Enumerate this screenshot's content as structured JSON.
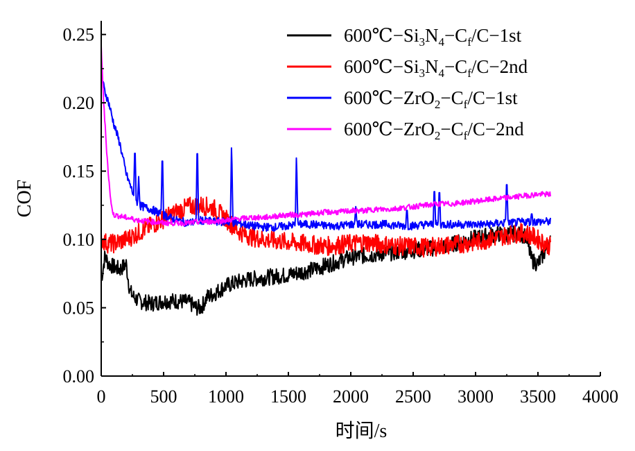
{
  "chart_data": {
    "type": "line",
    "title": "",
    "xlabel": "时间/s",
    "ylabel": "COF",
    "xlim": [
      0,
      4000
    ],
    "ylim": [
      0,
      0.26
    ],
    "x_ticks": [
      0,
      500,
      1000,
      1500,
      2000,
      2500,
      3000,
      3500,
      4000
    ],
    "x_tick_labels": [
      "0",
      "500",
      "1000",
      "1500",
      "2000",
      "2500",
      "3000",
      "3500",
      "4000"
    ],
    "y_ticks": [
      0,
      0.05,
      0.1,
      0.15,
      0.2,
      0.25
    ],
    "y_tick_labels": [
      "0.00",
      "0.05",
      "0.10",
      "0.15",
      "0.20",
      "0.25"
    ],
    "grid": false,
    "legend_position": "top-right",
    "series": [
      {
        "name": "600℃−Si3N4−Cf/C−1st",
        "legend": {
          "prefix": "600℃−Si",
          "sub1": "3",
          "mid1": "N",
          "sub2": "4",
          "mid2": "−C",
          "sub3": "f",
          "suffix": "/C−1st"
        },
        "color": "#000000",
        "x": [
          0,
          30,
          60,
          100,
          150,
          200,
          230,
          260,
          300,
          400,
          500,
          600,
          700,
          760,
          800,
          850,
          900,
          1000,
          1100,
          1200,
          1300,
          1400,
          1500,
          1600,
          1700,
          1800,
          1900,
          2000,
          2100,
          2200,
          2300,
          2400,
          2500,
          2600,
          2700,
          2800,
          2900,
          3000,
          3100,
          3200,
          3300,
          3400,
          3450,
          3500,
          3550,
          3600
        ],
        "y": [
          0.07,
          0.088,
          0.082,
          0.08,
          0.078,
          0.082,
          0.062,
          0.058,
          0.055,
          0.053,
          0.055,
          0.055,
          0.054,
          0.05,
          0.05,
          0.058,
          0.06,
          0.066,
          0.069,
          0.071,
          0.072,
          0.073,
          0.074,
          0.076,
          0.078,
          0.081,
          0.084,
          0.087,
          0.088,
          0.089,
          0.09,
          0.091,
          0.092,
          0.093,
          0.094,
          0.096,
          0.099,
          0.101,
          0.103,
          0.104,
          0.104,
          0.103,
          0.085,
          0.082,
          0.09,
          0.098
        ],
        "noise": 0.006
      },
      {
        "name": "600℃−Si3N4−Cf/C−2nd",
        "legend": {
          "prefix": "600℃−Si",
          "sub1": "3",
          "mid1": "N",
          "sub2": "4",
          "mid2": "−C",
          "sub3": "f",
          "suffix": "/C−2nd"
        },
        "color": "#ff0000",
        "x": [
          0,
          50,
          100,
          200,
          300,
          400,
          500,
          600,
          700,
          800,
          900,
          1000,
          1100,
          1200,
          1300,
          1400,
          1500,
          1600,
          1700,
          1800,
          1900,
          2000,
          2100,
          2200,
          2300,
          2400,
          2500,
          2600,
          2700,
          2800,
          2900,
          3000,
          3100,
          3200,
          3300,
          3400,
          3500,
          3600
        ],
        "y": [
          0.1,
          0.097,
          0.097,
          0.1,
          0.105,
          0.11,
          0.115,
          0.12,
          0.124,
          0.125,
          0.123,
          0.115,
          0.106,
          0.102,
          0.1,
          0.099,
          0.098,
          0.097,
          0.096,
          0.095,
          0.096,
          0.097,
          0.098,
          0.097,
          0.096,
          0.095,
          0.095,
          0.094,
          0.095,
          0.096,
          0.097,
          0.098,
          0.1,
          0.102,
          0.104,
          0.105,
          0.1,
          0.095
        ],
        "noise": 0.007
      },
      {
        "name": "600℃−ZrO2−Cf/C−1st",
        "legend": {
          "prefix": "600℃−ZrO",
          "sub1": "2",
          "mid1": "",
          "sub2": "",
          "mid2": "−C",
          "sub3": "f",
          "suffix": "/C−1st"
        },
        "color": "#0000ff",
        "x": [
          0,
          30,
          60,
          100,
          150,
          200,
          250,
          300,
          400,
          500,
          600,
          700,
          800,
          900,
          1000,
          1100,
          1200,
          1300,
          1400,
          1500,
          1600,
          1700,
          1800,
          1900,
          2000,
          2100,
          2200,
          2300,
          2400,
          2500,
          2600,
          2700,
          2800,
          2900,
          3000,
          3100,
          3200,
          3300,
          3400,
          3500,
          3600
        ],
        "y": [
          0.22,
          0.208,
          0.2,
          0.185,
          0.17,
          0.148,
          0.135,
          0.125,
          0.122,
          0.118,
          0.114,
          0.112,
          0.114,
          0.113,
          0.113,
          0.112,
          0.11,
          0.109,
          0.109,
          0.11,
          0.111,
          0.111,
          0.11,
          0.11,
          0.111,
          0.111,
          0.111,
          0.111,
          0.11,
          0.11,
          0.111,
          0.111,
          0.111,
          0.111,
          0.111,
          0.111,
          0.112,
          0.112,
          0.113,
          0.113,
          0.113
        ],
        "noise": 0.003,
        "spikes": [
          [
            270,
            0.171
          ],
          [
            300,
            0.146
          ],
          [
            490,
            0.167
          ],
          [
            770,
            0.175
          ],
          [
            1045,
            0.173
          ],
          [
            1565,
            0.165
          ],
          [
            2040,
            0.124
          ],
          [
            2450,
            0.124
          ],
          [
            2670,
            0.141
          ],
          [
            2710,
            0.14
          ],
          [
            3250,
            0.147
          ],
          [
            3450,
            0.12
          ]
        ]
      },
      {
        "name": "600℃−ZrO2−Cf/C−2nd",
        "legend": {
          "prefix": "600℃−ZrO",
          "sub1": "2",
          "mid1": "",
          "sub2": "",
          "mid2": "−C",
          "sub3": "f",
          "suffix": "/C−2nd"
        },
        "color": "#ff00ff",
        "x": [
          0,
          20,
          40,
          60,
          80,
          100,
          150,
          200,
          300,
          400,
          500,
          600,
          700,
          800,
          900,
          1000,
          1100,
          1200,
          1300,
          1400,
          1500,
          1600,
          1700,
          1800,
          1900,
          2000,
          2100,
          2200,
          2300,
          2400,
          2500,
          2600,
          2700,
          2800,
          2900,
          3000,
          3100,
          3200,
          3300,
          3400,
          3500,
          3600
        ],
        "y": [
          0.24,
          0.2,
          0.17,
          0.145,
          0.125,
          0.118,
          0.117,
          0.116,
          0.114,
          0.113,
          0.112,
          0.112,
          0.112,
          0.113,
          0.113,
          0.114,
          0.115,
          0.116,
          0.116,
          0.117,
          0.118,
          0.118,
          0.119,
          0.12,
          0.12,
          0.121,
          0.121,
          0.122,
          0.122,
          0.123,
          0.124,
          0.125,
          0.126,
          0.126,
          0.127,
          0.128,
          0.129,
          0.13,
          0.131,
          0.132,
          0.133,
          0.133
        ],
        "noise": 0.002
      }
    ]
  }
}
